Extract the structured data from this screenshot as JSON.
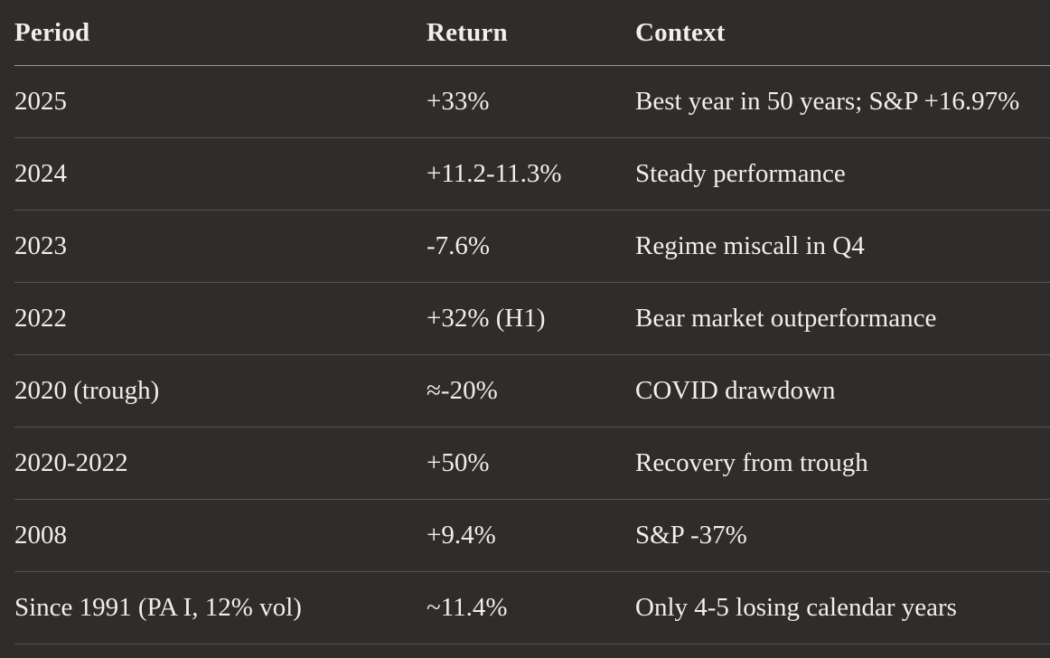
{
  "table": {
    "headers": [
      "Period",
      "Return",
      "Context"
    ],
    "rows": [
      [
        "2025",
        "+33%",
        "Best year in 50 years; S&P +16.97%"
      ],
      [
        "2024",
        "+11.2-11.3%",
        "Steady performance"
      ],
      [
        "2023",
        "-7.6%",
        "Regime miscall in Q4"
      ],
      [
        "2022",
        "+32% (H1)",
        "Bear market outperformance"
      ],
      [
        "2020 (trough)",
        "≈-20%",
        "COVID drawdown"
      ],
      [
        "2020-2022",
        "+50%",
        "Recovery from trough"
      ],
      [
        "2008",
        "+9.4%",
        "S&P -37%"
      ],
      [
        "Since 1991 (PA I, 12% vol)",
        "~11.4%",
        "Only 4-5 losing calendar years"
      ]
    ]
  },
  "colors": {
    "background": "#2e2d2b",
    "text": "#f1efeb",
    "header_divider": "#9e9c97",
    "row_divider": "#56544f"
  },
  "chart_data": {
    "type": "table",
    "columns": [
      "Period",
      "Return",
      "Context"
    ],
    "rows": [
      {
        "period": "2025",
        "return": "+33%",
        "context": "Best year in 50 years; S&P +16.97%"
      },
      {
        "period": "2024",
        "return": "+11.2-11.3%",
        "context": "Steady performance"
      },
      {
        "period": "2023",
        "return": "-7.6%",
        "context": "Regime miscall in Q4"
      },
      {
        "period": "2022",
        "return": "+32% (H1)",
        "context": "Bear market outperformance"
      },
      {
        "period": "2020 (trough)",
        "return": "≈-20%",
        "context": "COVID drawdown"
      },
      {
        "period": "2020-2022",
        "return": "+50%",
        "context": "Recovery from trough"
      },
      {
        "period": "2008",
        "return": "+9.4%",
        "context": "S&P -37%"
      },
      {
        "period": "Since 1991 (PA I, 12% vol)",
        "return": "~11.4%",
        "context": "Only 4-5 losing calendar years"
      }
    ]
  }
}
